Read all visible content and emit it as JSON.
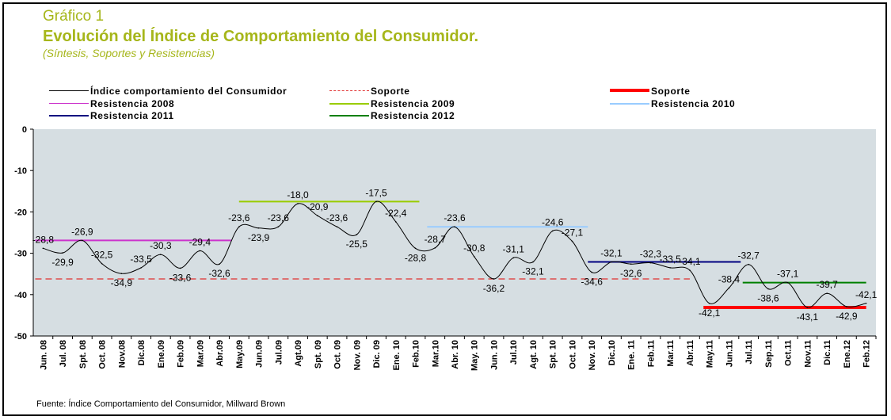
{
  "header": {
    "title": "Gráfico 1",
    "subtitle": "Evolución del Índice de Comportamiento del Consumidor.",
    "note": "(Síntesis, Soportes y Resistencias)"
  },
  "footer": {
    "source": "Fuente: Índice Comportamiento del Consumidor, Millward Brown"
  },
  "legend": [
    {
      "label": "Índice comportamiento del Consumidor",
      "color": "#000000",
      "style": "solid-thin"
    },
    {
      "label": "Soporte",
      "color": "#e03030",
      "style": "dashed"
    },
    {
      "label": "Soporte",
      "color": "#ff0000",
      "style": "solid-thick"
    },
    {
      "label": "Resistencia 2008",
      "color": "#cc33cc",
      "style": "solid"
    },
    {
      "label": "Resistencia 2009",
      "color": "#99cc00",
      "style": "solid"
    },
    {
      "label": "Resistencia 2010",
      "color": "#99ccff",
      "style": "solid"
    },
    {
      "label": "Resistencia 2011",
      "color": "#000080",
      "style": "solid"
    },
    {
      "label": "Resistencia 2012",
      "color": "#008000",
      "style": "solid"
    }
  ],
  "chart_data": {
    "type": "line",
    "title": "Evolución del Índice de Comportamiento del Consumidor.",
    "xlabel": "",
    "ylabel": "",
    "ylim": [
      -50,
      0
    ],
    "yticks": [
      0,
      -10,
      -20,
      -30,
      -40,
      -50
    ],
    "grid": false,
    "legend_position": "top",
    "categories": [
      "Jun. 08",
      "Jul. 08",
      "Spt. 08",
      "Oct. 08",
      "Nov.08",
      "Dic.08",
      "Ene.09",
      "Feb.09",
      "Mar.09",
      "Abr.09",
      "May.09",
      "Jun.09",
      "Jul.09",
      "Agt.09",
      "Spt. 09",
      "Oct. 09",
      "Nov. 09",
      "Dic. 09",
      "Ene. 10",
      "Feb.10",
      "Mar.10",
      "Abr. 10",
      "May. 10",
      "Jun. 10",
      "Jul.10",
      "Agt. 10",
      "Spt. 10",
      "Oct. 10",
      "Nov. 10",
      "Dic.10",
      "Ene. 11",
      "Feb.11",
      "Mar.11",
      "Abr.11",
      "May.11",
      "Jun.11",
      "Jul.11",
      "Sep.11",
      "Oct.11",
      "Nov.11",
      "Dic.11",
      "Ene.12",
      "Feb.12"
    ],
    "series": [
      {
        "name": "Índice comportamiento del Consumidor",
        "color": "#000000",
        "values": [
          -28.8,
          -29.9,
          -26.9,
          -32.5,
          -34.9,
          -33.5,
          -30.3,
          -33.6,
          -29.4,
          -32.6,
          -23.6,
          -23.9,
          -23.6,
          -18.0,
          -20.9,
          -23.6,
          -25.5,
          -17.5,
          -22.4,
          -28.8,
          -28.7,
          -23.6,
          -30.8,
          -36.2,
          -31.1,
          -32.1,
          -24.6,
          -27.1,
          -34.6,
          -32.1,
          -32.6,
          -32.3,
          -33.5,
          -34.1,
          -42.1,
          -38.4,
          -32.7,
          -38.6,
          -37.1,
          -43.1,
          -39.7,
          -42.9,
          -42.1
        ],
        "labels": [
          "-28,8",
          "-29,9",
          "-26,9",
          "-32,5",
          "-34,9",
          "-33,5",
          "-30,3",
          "-33,6",
          "-29,4",
          "-32,6",
          "-23,6",
          "-23,9",
          "-23,6",
          "-18,0",
          "-20,9",
          "-23,6",
          "-25,5",
          "-17,5",
          "-22,4",
          "-28,8",
          "-28,7",
          "-23,6",
          "-30,8",
          "-36,2",
          "-31,1",
          "-32,1",
          "-24,6",
          "-27,1",
          "-34,6",
          "-32,1",
          "-32,6",
          "-32,3",
          "-33,5",
          "-34,1",
          "-42,1",
          "-38,4",
          "-32,7",
          "-38,6",
          "-37,1",
          "-43,1",
          "-39,7",
          "-42,9",
          "-42,1"
        ]
      }
    ],
    "reference_lines": [
      {
        "name": "Soporte",
        "color": "#e03030",
        "style": "dashed",
        "y": -36.2,
        "from": 0,
        "to": 33
      },
      {
        "name": "Soporte",
        "color": "#ff0000",
        "style": "solid-thick",
        "y": -43.1,
        "from": 33.7,
        "to": 42
      },
      {
        "name": "Resistencia 2008",
        "color": "#cc33cc",
        "y": -26.9,
        "from": 0,
        "to": 9.6
      },
      {
        "name": "Resistencia 2009",
        "color": "#99cc00",
        "y": -17.5,
        "from": 10,
        "to": 19.2
      },
      {
        "name": "Resistencia 2010",
        "color": "#99ccff",
        "y": -23.6,
        "from": 19.6,
        "to": 27.8
      },
      {
        "name": "Resistencia 2011",
        "color": "#000080",
        "y": -32.1,
        "from": 27.8,
        "to": 35.6
      },
      {
        "name": "Resistencia 2012",
        "color": "#008000",
        "y": -37.1,
        "from": 35.7,
        "to": 42
      }
    ]
  }
}
